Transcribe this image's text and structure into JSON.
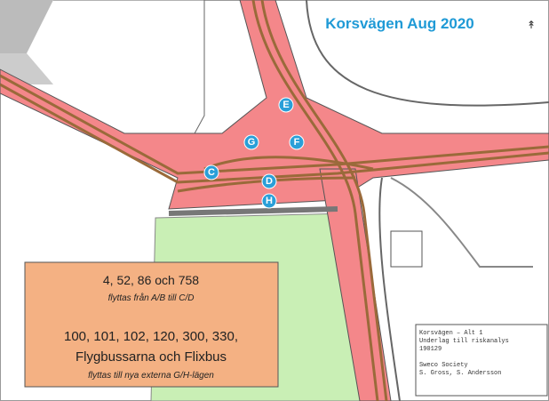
{
  "title": "Korsvägen Aug 2020",
  "stops": [
    {
      "label": "E"
    },
    {
      "label": "G"
    },
    {
      "label": "F"
    },
    {
      "label": "C"
    },
    {
      "label": "D"
    },
    {
      "label": "H"
    }
  ],
  "info_box": {
    "line1": "4, 52, 86 och 758",
    "line2": "flyttas från A/B till C/D",
    "line3": "100, 101, 102, 120, 300, 330,",
    "line4": "Flygbussarna och Flixbus",
    "line5": "flyttas till nya externa G/H-lägen"
  },
  "title_block": [
    "Korsvägen – Alt 1",
    "Underlag till riskanalys",
    "190129",
    "Sweco Society",
    "S. Gross, S. Andersson"
  ]
}
